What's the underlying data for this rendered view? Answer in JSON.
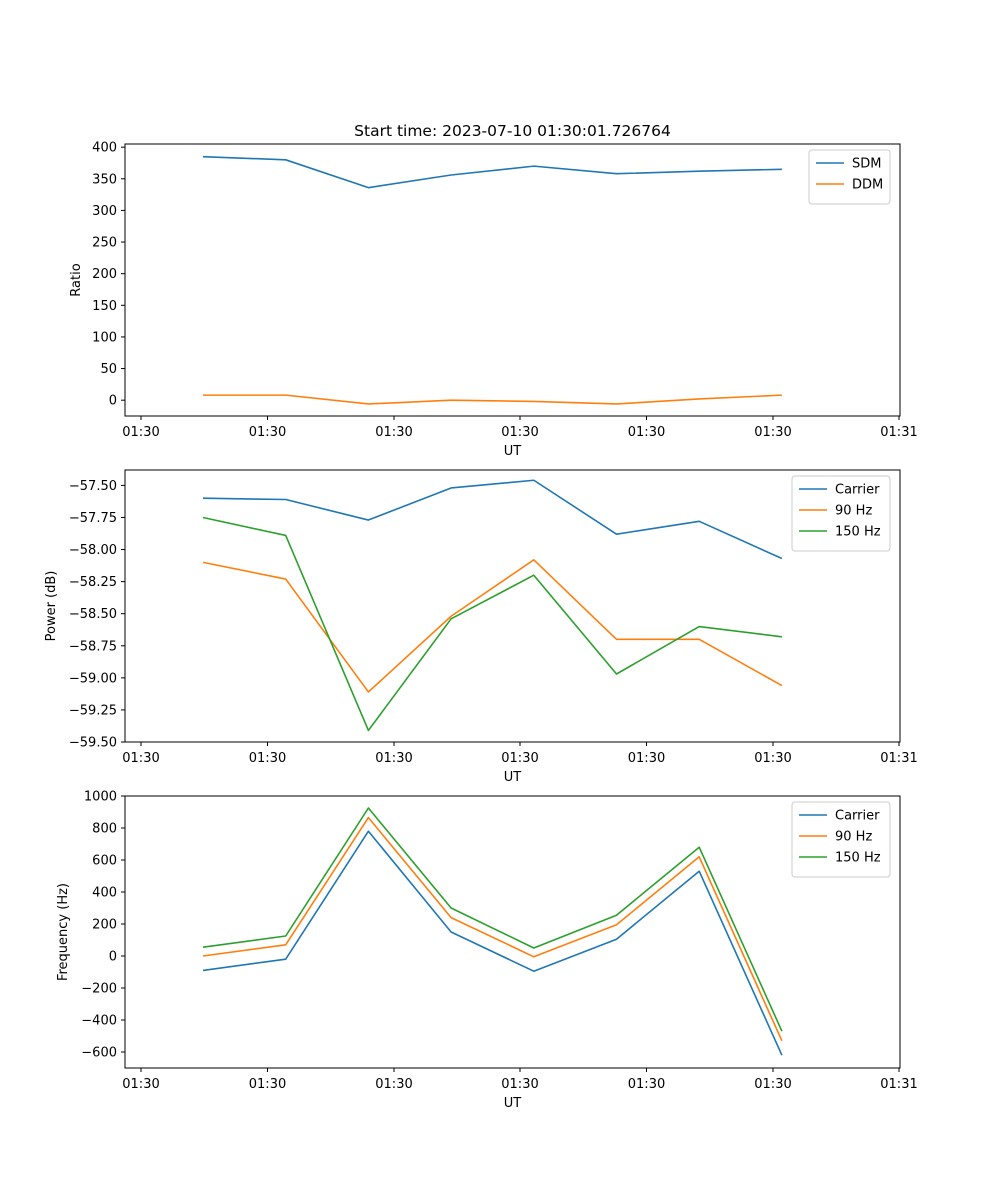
{
  "chart_data": [
    {
      "type": "line",
      "title": "Start time: 2023-07-10 01:30:01.726764",
      "xlabel": "UT",
      "ylabel": "Ratio",
      "x_tick_labels": [
        "01:30",
        "01:30",
        "01:30",
        "01:30",
        "01:30",
        "01:30",
        "01:31"
      ],
      "y_ticks": [
        0,
        50,
        100,
        150,
        200,
        250,
        300,
        350,
        400
      ],
      "ylim": [
        -25,
        405
      ],
      "legend_position": "upper right",
      "grid": false,
      "series": [
        {
          "name": "SDM",
          "color": "#1f77b4",
          "values": [
            385,
            380,
            336,
            356,
            370,
            358,
            362,
            365
          ]
        },
        {
          "name": "DDM",
          "color": "#ff7f0e",
          "values": [
            8,
            8,
            -6,
            0,
            -2,
            -6,
            2,
            8
          ]
        }
      ]
    },
    {
      "type": "line",
      "title": "",
      "xlabel": "UT",
      "ylabel": "Power (dB)",
      "x_tick_labels": [
        "01:30",
        "01:30",
        "01:30",
        "01:30",
        "01:30",
        "01:30",
        "01:31"
      ],
      "y_ticks": [
        -59.5,
        -59.25,
        -59.0,
        -58.75,
        -58.5,
        -58.25,
        -58.0,
        -57.75,
        -57.5
      ],
      "y_tick_labels": [
        "−59.50",
        "−59.25",
        "−59.00",
        "−58.75",
        "−58.50",
        "−58.25",
        "−58.00",
        "−57.75",
        "−57.50"
      ],
      "ylim": [
        -59.5,
        -57.38
      ],
      "legend_position": "upper right",
      "grid": false,
      "series": [
        {
          "name": "Carrier",
          "color": "#1f77b4",
          "values": [
            -57.6,
            -57.61,
            -57.77,
            -57.52,
            -57.46,
            -57.88,
            -57.78,
            -58.07
          ]
        },
        {
          "name": "90 Hz",
          "color": "#ff7f0e",
          "values": [
            -58.1,
            -58.23,
            -59.11,
            -58.52,
            -58.08,
            -58.7,
            -58.7,
            -59.06
          ]
        },
        {
          "name": "150 Hz",
          "color": "#2ca02c",
          "values": [
            -57.75,
            -57.89,
            -59.41,
            -58.54,
            -58.2,
            -58.97,
            -58.6,
            -58.68
          ]
        }
      ]
    },
    {
      "type": "line",
      "title": "",
      "xlabel": "UT",
      "ylabel": "Frequency (Hz)",
      "x_tick_labels": [
        "01:30",
        "01:30",
        "01:30",
        "01:30",
        "01:30",
        "01:30",
        "01:31"
      ],
      "y_ticks": [
        -600,
        -400,
        -200,
        0,
        200,
        400,
        600,
        800,
        1000
      ],
      "y_tick_labels": [
        "−600",
        "−400",
        "−200",
        "0",
        "200",
        "400",
        "600",
        "800",
        "1000"
      ],
      "ylim": [
        -700,
        1000
      ],
      "legend_position": "upper right",
      "grid": false,
      "series": [
        {
          "name": "Carrier",
          "color": "#1f77b4",
          "values": [
            -90,
            -20,
            780,
            150,
            -95,
            105,
            530,
            -620
          ]
        },
        {
          "name": "90 Hz",
          "color": "#ff7f0e",
          "values": [
            0,
            70,
            865,
            240,
            -5,
            195,
            620,
            -530
          ]
        },
        {
          "name": "150 Hz",
          "color": "#2ca02c",
          "values": [
            55,
            125,
            925,
            300,
            50,
            255,
            680,
            -470
          ]
        }
      ]
    }
  ]
}
